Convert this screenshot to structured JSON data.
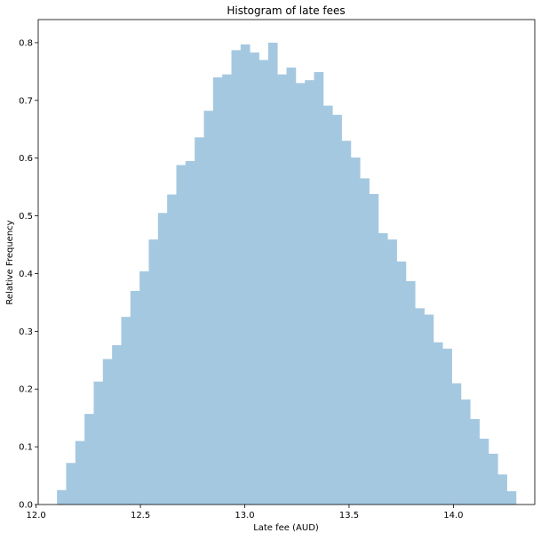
{
  "chart_data": {
    "type": "bar",
    "title": "Histogram of late fees",
    "xlabel": "Late fee (AUD)",
    "ylabel": "Relative Frequency",
    "xlim": [
      12.01,
      14.39
    ],
    "ylim": [
      0,
      0.84
    ],
    "x_ticks": [
      12.0,
      12.5,
      13.0,
      13.5,
      14.0
    ],
    "x_tick_labels": [
      "12.0",
      "12.5",
      "13.0",
      "13.5",
      "14.0"
    ],
    "y_ticks": [
      0.0,
      0.1,
      0.2,
      0.3,
      0.4,
      0.5,
      0.6,
      0.7,
      0.8
    ],
    "y_tick_labels": [
      "0.0",
      "0.1",
      "0.2",
      "0.3",
      "0.4",
      "0.5",
      "0.6",
      "0.7",
      "0.8"
    ],
    "bin_start": 12.1,
    "bin_end": 14.3,
    "values": [
      0.025,
      0.072,
      0.11,
      0.157,
      0.213,
      0.252,
      0.276,
      0.325,
      0.37,
      0.404,
      0.459,
      0.505,
      0.537,
      0.588,
      0.595,
      0.636,
      0.682,
      0.74,
      0.745,
      0.787,
      0.797,
      0.783,
      0.77,
      0.8,
      0.745,
      0.757,
      0.73,
      0.735,
      0.749,
      0.691,
      0.675,
      0.63,
      0.601,
      0.565,
      0.538,
      0.47,
      0.459,
      0.421,
      0.387,
      0.34,
      0.329,
      0.281,
      0.27,
      0.21,
      0.182,
      0.148,
      0.114,
      0.088,
      0.052,
      0.023
    ],
    "bar_color": "#a5c8e1",
    "grid": false,
    "legend": "none"
  }
}
